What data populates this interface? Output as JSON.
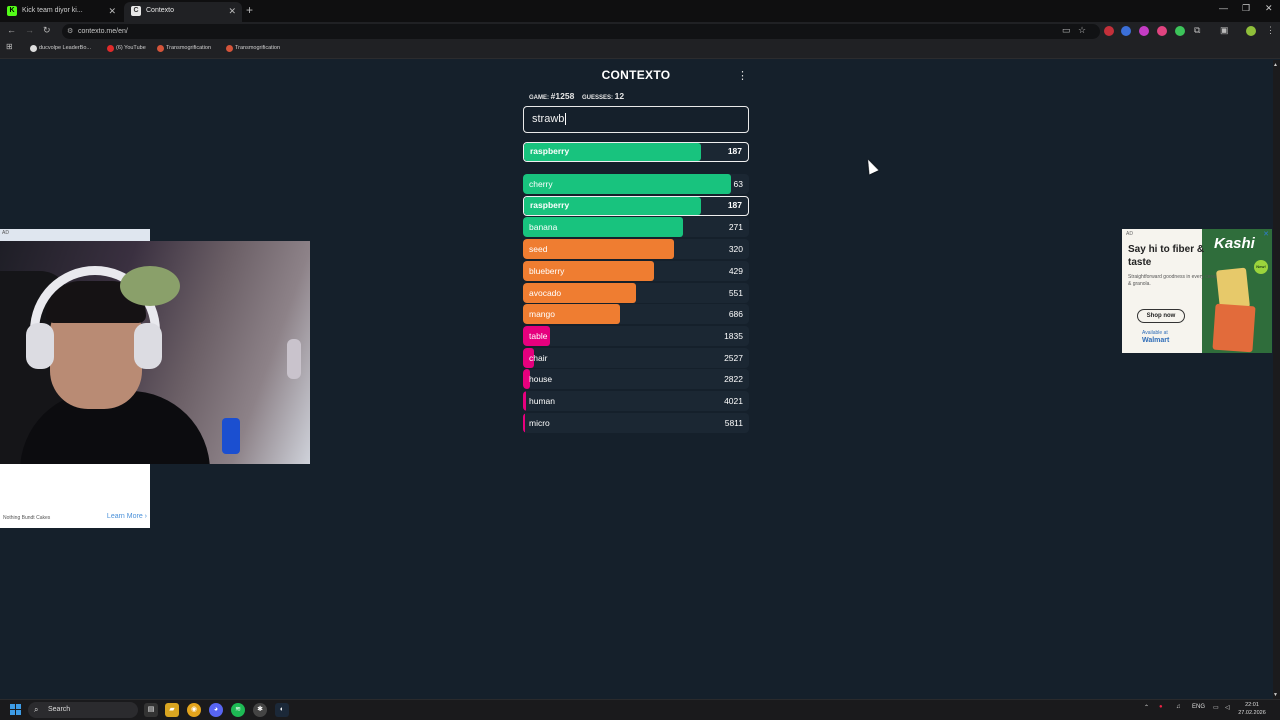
{
  "browser": {
    "tabs": [
      {
        "title": "Kick team diyor ki...",
        "favicon": "K"
      },
      {
        "title": "Contexto",
        "favicon": "C"
      }
    ],
    "url": "contexto.me/en/",
    "bookmarks": [
      "ducvolpe LeaderBo...",
      "(6) YouTube",
      "Transmogrification",
      "Transmogrification"
    ]
  },
  "game": {
    "title": "CONTEXTO",
    "game_label": "GAME:",
    "game_number": "#1258",
    "guesses_label": "GUESSES:",
    "guesses_count": "12",
    "input_value": "strawb",
    "current_guess": {
      "word": "raspberry",
      "distance": "187",
      "fill": 0.79,
      "color": "#18c37e"
    },
    "guesses": [
      {
        "word": "cherry",
        "distance": "63",
        "fill": 0.92,
        "color": "#18c37e"
      },
      {
        "word": "raspberry",
        "distance": "187",
        "fill": 0.79,
        "color": "#18c37e",
        "current": true
      },
      {
        "word": "banana",
        "distance": "271",
        "fill": 0.71,
        "color": "#18c37e"
      },
      {
        "word": "seed",
        "distance": "320",
        "fill": 0.67,
        "color": "#ef7d31"
      },
      {
        "word": "blueberry",
        "distance": "429",
        "fill": 0.58,
        "color": "#ef7d31"
      },
      {
        "word": "avocado",
        "distance": "551",
        "fill": 0.5,
        "color": "#ef7d31"
      },
      {
        "word": "mango",
        "distance": "686",
        "fill": 0.43,
        "color": "#ef7d31"
      },
      {
        "word": "table",
        "distance": "1835",
        "fill": 0.12,
        "color": "#e6007e"
      },
      {
        "word": "chair",
        "distance": "2527",
        "fill": 0.05,
        "color": "#e6007e"
      },
      {
        "word": "house",
        "distance": "2822",
        "fill": 0.03,
        "color": "#e6007e"
      },
      {
        "word": "human",
        "distance": "4021",
        "fill": 0.015,
        "color": "#e6007e"
      },
      {
        "word": "micro",
        "distance": "5811",
        "fill": 0.01,
        "color": "#e6007e"
      }
    ]
  },
  "ads": {
    "left_tag": "AD",
    "left_brand": "Nothing Bundt Cakes",
    "left_cta": "Learn More",
    "right_tag": "AD",
    "right_headline": "Say hi to fiber & taste",
    "right_sub": "Straightforward goodness in every cereal & granola.",
    "right_cta": "Shop now",
    "right_available": "Available at",
    "right_retailer": "Walmart",
    "right_logo": "Kashi",
    "right_badge": "New!"
  },
  "taskbar": {
    "search": "Search",
    "language": "ENG",
    "time": "22:01",
    "date": "27.02.2026"
  }
}
